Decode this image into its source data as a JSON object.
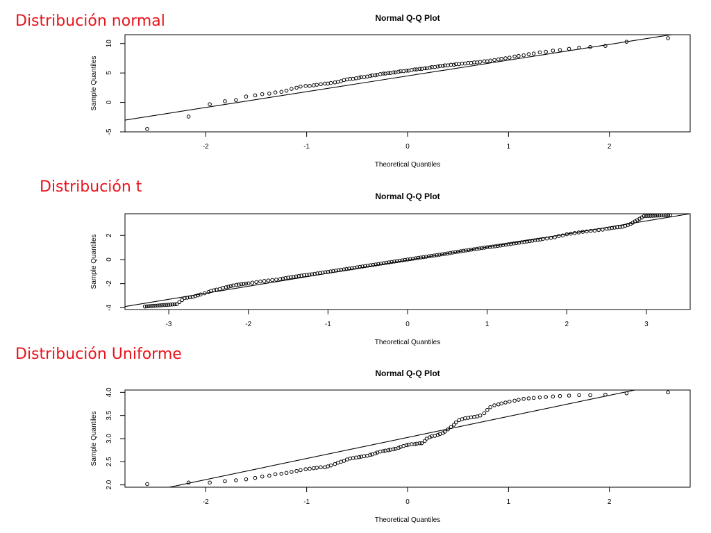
{
  "headings": {
    "normal": "Distribución normal",
    "t": "Distribución t",
    "uniform": "Distribución Uniforme"
  },
  "colors": {
    "heading": "#e8141c",
    "ink": "#000000"
  },
  "chart_data": [
    {
      "type": "scatter",
      "title": "Normal Q-Q Plot",
      "xlabel": "Theoretical Quantiles",
      "ylabel": "Sample Quantiles",
      "xlim": [
        -2.8,
        2.8
      ],
      "ylim": [
        -5,
        11.5
      ],
      "xticks": [
        -2,
        -1,
        0,
        1,
        2
      ],
      "yticks": [
        -5,
        0,
        5,
        10
      ],
      "ytick_labels": [
        "-5",
        "0",
        "5",
        "10"
      ],
      "reference_line": {
        "x": [
          -2.8,
          2.8
        ],
        "y": [
          -3.0,
          12.0
        ]
      },
      "distribution": "normal",
      "n": 100,
      "x": [
        -2.58,
        -2.17,
        -1.96,
        -1.81,
        -1.7,
        -1.6,
        -1.51,
        -1.44,
        -1.37,
        -1.31,
        -1.25,
        -1.2,
        -1.15,
        -1.1,
        -1.06,
        -1.01,
        -0.97,
        -0.93,
        -0.9,
        -0.86,
        -0.82,
        -0.79,
        -0.76,
        -0.72,
        -0.69,
        -0.66,
        -0.63,
        -0.6,
        -0.57,
        -0.54,
        -0.51,
        -0.48,
        -0.46,
        -0.43,
        -0.4,
        -0.37,
        -0.35,
        -0.32,
        -0.3,
        -0.27,
        -0.24,
        -0.22,
        -0.19,
        -0.17,
        -0.14,
        -0.12,
        -0.09,
        -0.07,
        -0.04,
        -0.01,
        0.01,
        0.04,
        0.07,
        0.09,
        0.12,
        0.14,
        0.17,
        0.19,
        0.22,
        0.24,
        0.27,
        0.3,
        0.32,
        0.35,
        0.37,
        0.4,
        0.43,
        0.46,
        0.48,
        0.51,
        0.54,
        0.57,
        0.6,
        0.63,
        0.66,
        0.69,
        0.72,
        0.76,
        0.79,
        0.82,
        0.86,
        0.9,
        0.93,
        0.97,
        1.01,
        1.06,
        1.1,
        1.15,
        1.2,
        1.25,
        1.31,
        1.37,
        1.44,
        1.51,
        1.6,
        1.7,
        1.81,
        1.96,
        2.17,
        2.58
      ],
      "y": [
        -4.5,
        -2.4,
        -0.3,
        0.2,
        0.4,
        1.0,
        1.2,
        1.4,
        1.5,
        1.7,
        1.8,
        2.0,
        2.3,
        2.5,
        2.7,
        2.8,
        2.8,
        2.9,
        3.0,
        3.1,
        3.2,
        3.2,
        3.3,
        3.4,
        3.5,
        3.6,
        3.8,
        3.9,
        4.0,
        4.0,
        4.1,
        4.2,
        4.3,
        4.3,
        4.4,
        4.5,
        4.6,
        4.6,
        4.7,
        4.8,
        4.9,
        4.9,
        5.0,
        5.0,
        5.1,
        5.1,
        5.2,
        5.3,
        5.3,
        5.4,
        5.4,
        5.5,
        5.6,
        5.6,
        5.7,
        5.7,
        5.8,
        5.8,
        5.9,
        6.0,
        6.0,
        6.1,
        6.2,
        6.2,
        6.3,
        6.3,
        6.4,
        6.4,
        6.5,
        6.5,
        6.6,
        6.6,
        6.7,
        6.7,
        6.8,
        6.8,
        6.9,
        7.0,
        7.0,
        7.1,
        7.2,
        7.3,
        7.4,
        7.5,
        7.6,
        7.8,
        7.9,
        8.0,
        8.2,
        8.3,
        8.5,
        8.6,
        8.8,
        8.9,
        9.1,
        9.3,
        9.4,
        9.6,
        10.3,
        10.9
      ]
    },
    {
      "type": "scatter",
      "title": "Normal Q-Q Plot",
      "xlabel": "Theoretical Quantiles",
      "ylabel": "Sample Quantiles",
      "xlim": [
        -3.55,
        3.55
      ],
      "ylim": [
        -4.15,
        3.8
      ],
      "xticks": [
        -3,
        -2,
        -1,
        0,
        1,
        2,
        3
      ],
      "yticks": [
        -4,
        -2,
        0,
        2
      ],
      "ytick_labels": [
        "-4",
        "-2",
        "0",
        "2"
      ],
      "reference_line": {
        "x": [
          -3.55,
          3.55
        ],
        "y": [
          -3.9,
          3.8
        ]
      },
      "distribution": "t",
      "n": 400,
      "x": [
        -3.3,
        -2.9,
        -2.8,
        -2.7,
        -2.6,
        -2.55,
        -2.5,
        -2.47,
        -2.43,
        -2.4,
        -2.36,
        -2.32,
        -2.28,
        -2.25,
        -2.22,
        -2.19,
        -2.15,
        -2.12,
        -2.09,
        -2.06,
        -2.03,
        -2.0,
        -1.95,
        -1.9,
        -1.85,
        -1.8,
        -1.75,
        -1.7,
        -1.65,
        -1.6,
        -1.5,
        -1.4,
        -1.3,
        -1.2,
        -1.1,
        -1.0,
        -0.9,
        -0.8,
        -0.7,
        -0.6,
        -0.5,
        -0.4,
        -0.3,
        -0.2,
        -0.1,
        0.0,
        0.1,
        0.2,
        0.3,
        0.4,
        0.5,
        0.6,
        0.7,
        0.8,
        0.9,
        1.0,
        1.1,
        1.2,
        1.3,
        1.4,
        1.5,
        1.6,
        1.7,
        1.75,
        1.8,
        1.85,
        1.9,
        1.95,
        2.0,
        2.05,
        2.1,
        2.15,
        2.2,
        2.25,
        2.3,
        2.35,
        2.4,
        2.45,
        2.5,
        2.6,
        2.7,
        2.8,
        2.97,
        3.3
      ],
      "y": [
        -3.9,
        -3.7,
        -3.2,
        -3.1,
        -2.9,
        -2.8,
        -2.7,
        -2.6,
        -2.55,
        -2.5,
        -2.45,
        -2.35,
        -2.3,
        -2.25,
        -2.2,
        -2.15,
        -2.1,
        -2.08,
        -2.05,
        -2.02,
        -2.0,
        -1.98,
        -1.92,
        -1.87,
        -1.82,
        -1.78,
        -1.74,
        -1.7,
        -1.67,
        -1.62,
        -1.5,
        -1.4,
        -1.3,
        -1.22,
        -1.12,
        -1.02,
        -0.92,
        -0.82,
        -0.72,
        -0.61,
        -0.51,
        -0.41,
        -0.3,
        -0.2,
        -0.1,
        0.0,
        0.1,
        0.2,
        0.3,
        0.4,
        0.5,
        0.62,
        0.72,
        0.82,
        0.92,
        1.02,
        1.1,
        1.2,
        1.3,
        1.4,
        1.5,
        1.6,
        1.7,
        1.75,
        1.8,
        1.85,
        1.95,
        2.0,
        2.1,
        2.15,
        2.2,
        2.25,
        2.3,
        2.33,
        2.37,
        2.4,
        2.45,
        2.48,
        2.55,
        2.65,
        2.72,
        2.95,
        3.6,
        3.7
      ]
    },
    {
      "type": "scatter",
      "title": "Normal Q-Q Plot",
      "xlabel": "Theoretical Quantiles",
      "ylabel": "Sample Quantiles",
      "xlim": [
        -2.8,
        2.8
      ],
      "ylim": [
        1.95,
        4.05
      ],
      "xticks": [
        -2,
        -1,
        0,
        1,
        2
      ],
      "yticks": [
        2.0,
        2.5,
        3.0,
        3.5,
        4.0
      ],
      "ytick_labels": [
        "2.0",
        "2.5",
        "3.0",
        "3.5",
        "4.0"
      ],
      "reference_line": {
        "x": [
          -2.8,
          2.8
        ],
        "y": [
          1.75,
          4.3
        ]
      },
      "distribution": "uniform",
      "n": 100,
      "x": [
        -2.58,
        -2.17,
        -1.96,
        -1.81,
        -1.7,
        -1.6,
        -1.51,
        -1.44,
        -1.37,
        -1.31,
        -1.25,
        -1.2,
        -1.15,
        -1.1,
        -1.06,
        -1.01,
        -0.97,
        -0.93,
        -0.9,
        -0.86,
        -0.82,
        -0.79,
        -0.76,
        -0.72,
        -0.69,
        -0.66,
        -0.63,
        -0.6,
        -0.57,
        -0.54,
        -0.51,
        -0.48,
        -0.46,
        -0.43,
        -0.4,
        -0.37,
        -0.35,
        -0.32,
        -0.3,
        -0.27,
        -0.24,
        -0.22,
        -0.19,
        -0.17,
        -0.14,
        -0.12,
        -0.09,
        -0.07,
        -0.04,
        -0.01,
        0.01,
        0.04,
        0.07,
        0.09,
        0.12,
        0.14,
        0.17,
        0.19,
        0.22,
        0.24,
        0.27,
        0.3,
        0.32,
        0.35,
        0.37,
        0.4,
        0.43,
        0.46,
        0.48,
        0.51,
        0.54,
        0.57,
        0.6,
        0.63,
        0.66,
        0.69,
        0.72,
        0.76,
        0.79,
        0.82,
        0.86,
        0.9,
        0.93,
        0.97,
        1.01,
        1.06,
        1.1,
        1.15,
        1.2,
        1.25,
        1.31,
        1.37,
        1.44,
        1.51,
        1.6,
        1.7,
        1.81,
        1.96,
        2.17,
        2.58
      ],
      "y": [
        2.02,
        2.05,
        2.05,
        2.08,
        2.1,
        2.12,
        2.15,
        2.18,
        2.2,
        2.23,
        2.24,
        2.26,
        2.28,
        2.3,
        2.32,
        2.34,
        2.35,
        2.36,
        2.37,
        2.38,
        2.38,
        2.4,
        2.42,
        2.45,
        2.48,
        2.5,
        2.52,
        2.55,
        2.57,
        2.58,
        2.59,
        2.6,
        2.61,
        2.62,
        2.63,
        2.65,
        2.66,
        2.68,
        2.7,
        2.72,
        2.73,
        2.74,
        2.75,
        2.76,
        2.77,
        2.78,
        2.8,
        2.82,
        2.84,
        2.86,
        2.87,
        2.88,
        2.88,
        2.89,
        2.9,
        2.9,
        2.95,
        3.0,
        3.03,
        3.05,
        3.06,
        3.08,
        3.1,
        3.12,
        3.15,
        3.2,
        3.25,
        3.3,
        3.35,
        3.4,
        3.42,
        3.44,
        3.45,
        3.46,
        3.47,
        3.48,
        3.5,
        3.55,
        3.62,
        3.68,
        3.72,
        3.74,
        3.76,
        3.78,
        3.8,
        3.82,
        3.84,
        3.86,
        3.87,
        3.88,
        3.89,
        3.9,
        3.91,
        3.92,
        3.93,
        3.94,
        3.94,
        3.95,
        3.98,
        4.0
      ]
    }
  ]
}
